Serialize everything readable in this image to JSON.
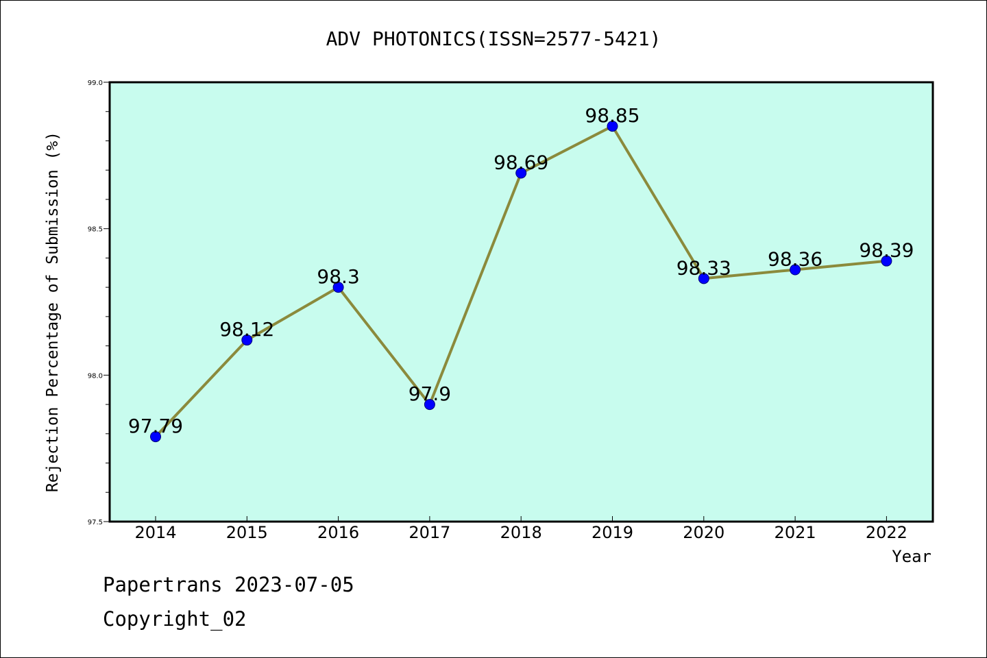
{
  "chart_data": {
    "type": "line",
    "title": "ADV PHOTONICS(ISSN=2577-5421)",
    "xlabel": "Year",
    "ylabel": "Rejection Percentage of Submission (%)",
    "categories": [
      "2014",
      "2015",
      "2016",
      "2017",
      "2018",
      "2019",
      "2020",
      "2021",
      "2022"
    ],
    "values": [
      97.79,
      98.12,
      98.3,
      97.9,
      98.69,
      98.85,
      98.33,
      98.36,
      98.39
    ],
    "data_labels": [
      "97.79",
      "98.12",
      "98.3",
      "97.9",
      "98.69",
      "98.85",
      "98.33",
      "98.36",
      "98.39"
    ],
    "ylim": [
      97.5,
      99.0
    ],
    "yticks": [
      "97.5",
      "98.0",
      "98.5",
      "99.0"
    ],
    "grid": false,
    "colors": {
      "plot_background": "#c8fcee",
      "line": "#8b8a3c",
      "marker": "#0000ff"
    }
  },
  "footer": {
    "line1": "Papertrans 2023-07-05",
    "line2": "Copyright_02"
  }
}
